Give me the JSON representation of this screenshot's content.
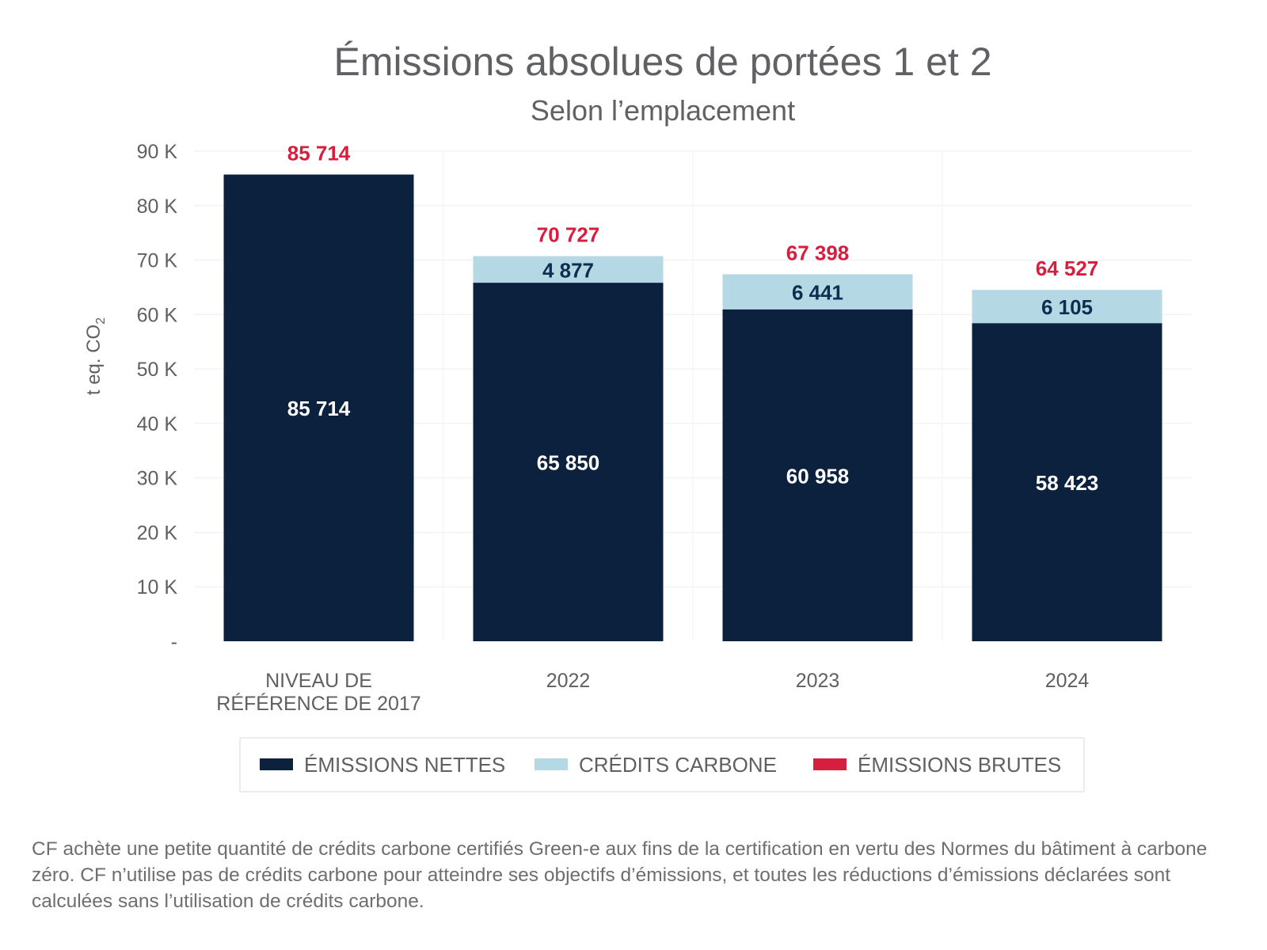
{
  "chart_data": {
    "type": "bar",
    "stacked": true,
    "title": "Émissions absolues de portées 1 et 2",
    "subtitle": "Selon l’emplacement",
    "ylabel": "t eq. CO",
    "ylabel_subscript": "2",
    "ylim": [
      0,
      90000
    ],
    "yticks": [
      {
        "value": 0,
        "label": "-"
      },
      {
        "value": 10000,
        "label": "10 K"
      },
      {
        "value": 20000,
        "label": "20 K"
      },
      {
        "value": 30000,
        "label": "30 K"
      },
      {
        "value": 40000,
        "label": "40 K"
      },
      {
        "value": 50000,
        "label": "50 K"
      },
      {
        "value": 60000,
        "label": "60 K"
      },
      {
        "value": 70000,
        "label": "70 K"
      },
      {
        "value": 80000,
        "label": "80 K"
      },
      {
        "value": 90000,
        "label": "90 K"
      }
    ],
    "grid": true,
    "categories": [
      [
        "NIVEAU DE",
        "RÉFÉRENCE DE 2017"
      ],
      [
        "2022"
      ],
      [
        "2023"
      ],
      [
        "2024"
      ]
    ],
    "series": [
      {
        "name": "ÉMISSIONS NETTES",
        "color": "#0c213d",
        "values": [
          85714,
          65850,
          60958,
          58423
        ],
        "labels": [
          "85 714",
          "65 850",
          "60 958",
          "58 423"
        ]
      },
      {
        "name": "CRÉDITS CARBONE",
        "color": "#b4d8e4",
        "values": [
          0,
          4877,
          6441,
          6105
        ],
        "labels": [
          "",
          "4 877",
          "6 441",
          "6 105"
        ]
      }
    ],
    "totals": {
      "name": "ÉMISSIONS BRUTES",
      "color": "#d81e3e",
      "values": [
        85714,
        70727,
        67398,
        64527
      ],
      "labels": [
        "85 714",
        "70 727",
        "67 398",
        "64 527"
      ]
    },
    "legend": {
      "position": "bottom",
      "items": [
        {
          "label": "ÉMISSIONS NETTES",
          "color": "#0c213d"
        },
        {
          "label": "CRÉDITS CARBONE",
          "color": "#b4d8e4"
        },
        {
          "label": "ÉMISSIONS BRUTES",
          "color": "#d81e3e"
        }
      ]
    }
  },
  "footnote": "CF achète une petite quantité de crédits carbone certifiés Green-e aux fins de la certification en vertu des Normes du bâtiment à carbone zéro. CF n’utilise pas de crédits carbone pour atteindre ses objectifs d’émissions, et toutes les réductions d’émissions déclarées sont calculées sans l’utilisation de crédits carbone."
}
